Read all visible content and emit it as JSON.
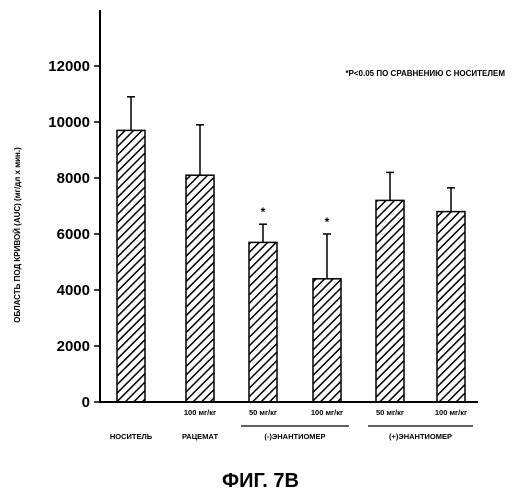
{
  "chart_data": {
    "type": "bar",
    "ylabel": "ОБЛАСТЬ ПОД КРИВОЙ (AUC) (мг/дл х мин.)",
    "ylim": [
      0,
      14000
    ],
    "yticks": [
      0,
      2000,
      4000,
      6000,
      8000,
      10000,
      12000
    ],
    "grid": false,
    "annotation": "*P<0.05 ПО СРАВНЕНИЮ С НОСИТЕЛЕМ",
    "categories": [
      {
        "dose": "",
        "group": "НОСИТЕЛЬ"
      },
      {
        "dose": "100 мг/кг",
        "group": "РАЦЕМАТ"
      },
      {
        "dose": "50 мг/кг",
        "group": "(-)ЭНАНТИОМЕР"
      },
      {
        "dose": "100 мг/кг",
        "group": "(-)ЭНАНТИОМЕР"
      },
      {
        "dose": "50 мг/кг",
        "group": "(+)ЭНАНТИОМЕР"
      },
      {
        "dose": "100 мг/кг",
        "group": "(+)ЭНАНТИОМЕР"
      }
    ],
    "groups": [
      {
        "label": "НОСИТЕЛЬ",
        "bars": [
          0
        ]
      },
      {
        "label": "РАЦЕМАТ",
        "bars": [
          1
        ]
      },
      {
        "label": "(-)ЭНАНТИОМЕР",
        "bars": [
          2,
          3
        ]
      },
      {
        "label": "(+)ЭНАНТИОМЕР",
        "bars": [
          4,
          5
        ]
      }
    ],
    "values": [
      9700,
      8100,
      5700,
      4400,
      7200,
      6800
    ],
    "errors": [
      1200,
      1800,
      650,
      1600,
      1000,
      850
    ],
    "significance": [
      "",
      "",
      "*",
      "*",
      "",
      ""
    ]
  },
  "figure_caption": "ФИГ. 7В"
}
